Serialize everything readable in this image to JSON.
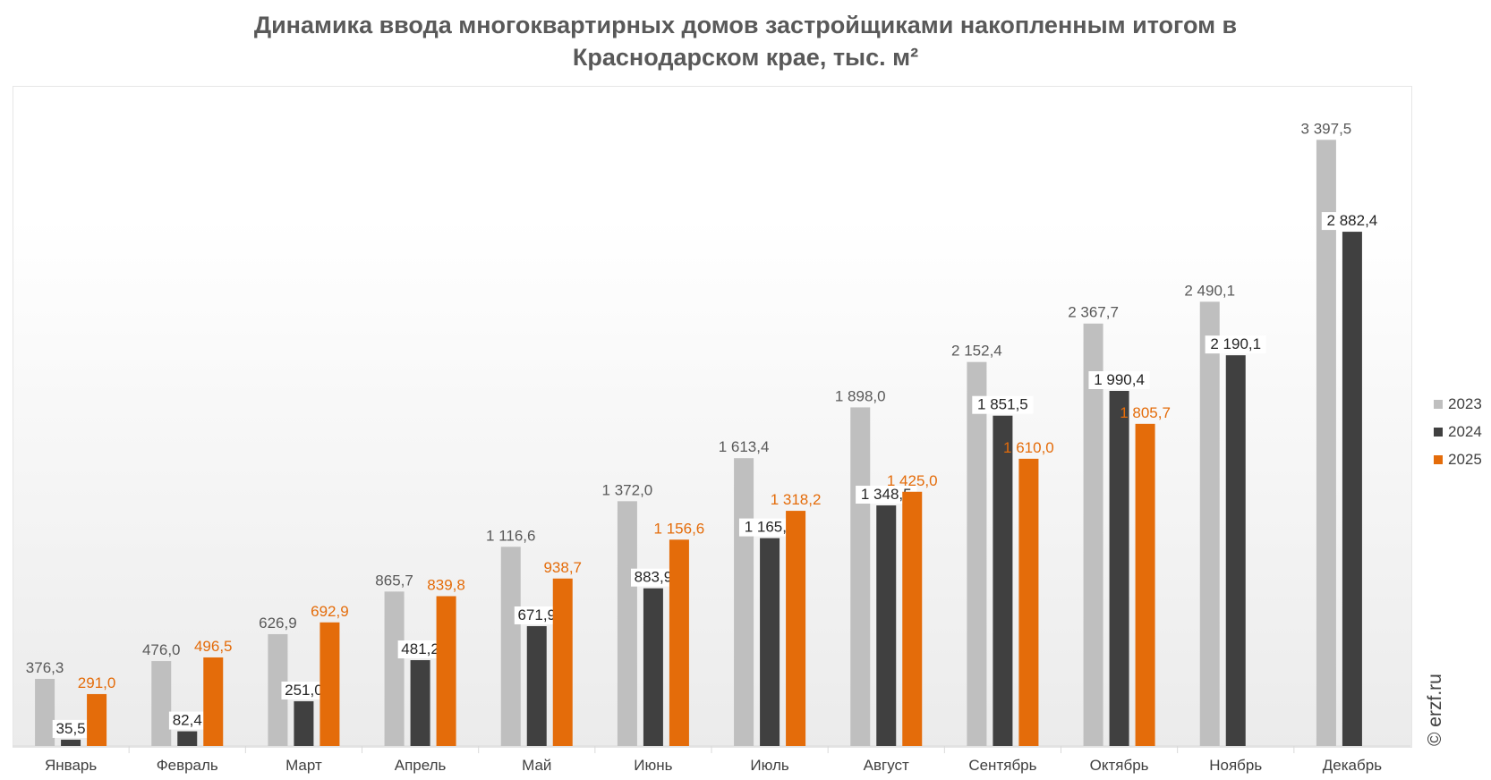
{
  "chart_data": {
    "type": "bar",
    "title": "Динамика ввода многоквартирных домов застройщиками накопленным итогом в Краснодарском крае, тыс. м²",
    "title_lines": [
      "Динамика ввода многоквартирных домов застройщиками накопленным итогом в",
      "Краснодарском крае, тыс. м²"
    ],
    "categories": [
      "Январь",
      "Февраль",
      "Март",
      "Апрель",
      "Май",
      "Июнь",
      "Июль",
      "Август",
      "Сентябрь",
      "Октябрь",
      "Ноябрь",
      "Декабрь"
    ],
    "series": [
      {
        "name": "2023",
        "color": "#bfbfbf",
        "label_color": "#595959",
        "values": [
          376.3,
          476.0,
          626.9,
          865.7,
          1116.6,
          1372.0,
          1613.4,
          1898.0,
          2152.4,
          2367.7,
          2490.1,
          3397.5
        ],
        "labels": [
          "376,3",
          "476,0",
          "626,9",
          "865,7",
          "1 116,6",
          "1 372,0",
          "1 613,4",
          "1 898,0",
          "2 152,4",
          "2 367,7",
          "2 490,1",
          "3 397,5"
        ]
      },
      {
        "name": "2024",
        "color": "#404040",
        "label_color": "#262626",
        "values": [
          35.5,
          82.4,
          251.0,
          481.2,
          671.9,
          883.9,
          1165.1,
          1348.5,
          1851.5,
          1990.4,
          2190.1,
          2882.4
        ],
        "labels": [
          "35,5",
          "82,4",
          "251,0",
          "481,2",
          "671,9",
          "883,9",
          "1 165,1",
          "1 348,5",
          "1 851,5",
          "1 990,4",
          "2 190,1",
          "2 882,4"
        ]
      },
      {
        "name": "2025",
        "color": "#e46c0a",
        "label_color": "#e46c0a",
        "values": [
          291.0,
          496.5,
          692.9,
          839.8,
          938.7,
          1156.6,
          1318.2,
          1425.0,
          1610.0,
          1805.7,
          null,
          null
        ],
        "labels": [
          "291,0",
          "496,5",
          "692,9",
          "839,8",
          "938,7",
          "1 156,6",
          "1 318,2",
          "1 425,0",
          "1 610,0",
          "1 805,7",
          "",
          ""
        ]
      }
    ],
    "ylim": [
      0,
      3700
    ],
    "grid": false,
    "legend": "right",
    "watermark": "© erzf.ru"
  }
}
